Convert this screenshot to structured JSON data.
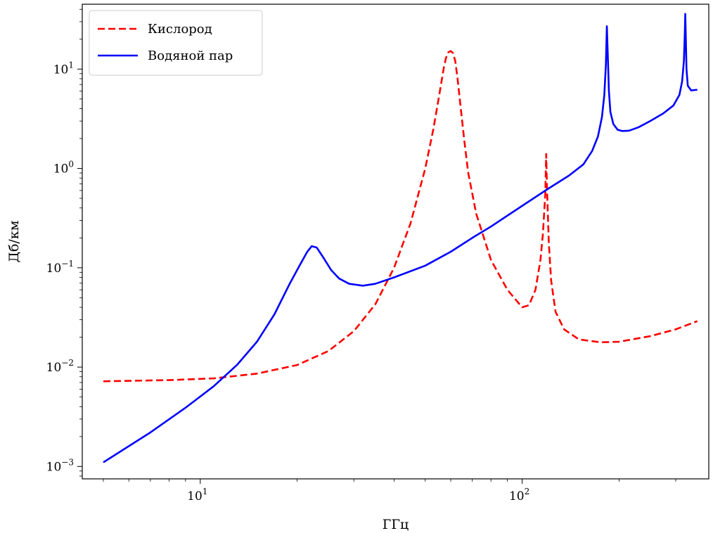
{
  "chart_data": {
    "type": "line",
    "xscale": "log",
    "yscale": "log",
    "xlim": [
      4.3,
      380
    ],
    "ylim": [
      0.00075,
      45
    ],
    "xlabel": "ГГц",
    "ylabel": "Дб/км",
    "x_ticks": [
      {
        "base": "10",
        "exp": "1",
        "value": 10
      },
      {
        "base": "10",
        "exp": "2",
        "value": 100
      }
    ],
    "y_ticks": [
      {
        "base": "10",
        "exp": "−3",
        "value": 0.001
      },
      {
        "base": "10",
        "exp": "−2",
        "value": 0.01
      },
      {
        "base": "10",
        "exp": "−1",
        "value": 0.1
      },
      {
        "base": "10",
        "exp": "0",
        "value": 1
      },
      {
        "base": "10",
        "exp": "1",
        "value": 10
      }
    ],
    "legend_position": "upper-left",
    "series": [
      {
        "name": "Кислород",
        "color": "#ff0000",
        "style": "dashed",
        "x": [
          5,
          8,
          11,
          15,
          20,
          25,
          30,
          35,
          40,
          45,
          50,
          53,
          55,
          57,
          58,
          59,
          60,
          61,
          62,
          63,
          64,
          66,
          68,
          72,
          80,
          90,
          100,
          105,
          110,
          114,
          116,
          118,
          118.75,
          119.5,
          121,
          123,
          127,
          135,
          150,
          175,
          200,
          250,
          300,
          350
        ],
        "y": [
          0.0072,
          0.0074,
          0.0077,
          0.0086,
          0.0105,
          0.0145,
          0.023,
          0.043,
          0.1,
          0.28,
          1.0,
          2.5,
          5.0,
          10.0,
          13.0,
          14.8,
          15.2,
          14.5,
          12.0,
          8.0,
          5.0,
          2.0,
          0.9,
          0.35,
          0.12,
          0.06,
          0.04,
          0.042,
          0.06,
          0.12,
          0.22,
          0.55,
          1.4,
          0.6,
          0.18,
          0.075,
          0.036,
          0.024,
          0.019,
          0.0178,
          0.018,
          0.0205,
          0.024,
          0.029
        ]
      },
      {
        "name": "Водяной пар",
        "color": "#0000ff",
        "style": "solid",
        "x": [
          5,
          7,
          9,
          11,
          13,
          15,
          17,
          19,
          20.5,
          21.5,
          22.2,
          23,
          24,
          25.5,
          27,
          29,
          32,
          35,
          40,
          50,
          60,
          70,
          80,
          100,
          120,
          140,
          155,
          165,
          172,
          177,
          180,
          182,
          183.3,
          184.5,
          186,
          188,
          192,
          198,
          205,
          215,
          230,
          250,
          275,
          295,
          308,
          314,
          318,
          320,
          321.2,
          322.5,
          324,
          327,
          335,
          350
        ],
        "y": [
          0.0011,
          0.0022,
          0.0039,
          0.0064,
          0.0105,
          0.018,
          0.034,
          0.07,
          0.11,
          0.145,
          0.165,
          0.16,
          0.13,
          0.095,
          0.078,
          0.069,
          0.066,
          0.069,
          0.08,
          0.105,
          0.145,
          0.2,
          0.26,
          0.42,
          0.62,
          0.85,
          1.1,
          1.5,
          2.1,
          3.3,
          5.5,
          11.0,
          27.0,
          14.0,
          6.0,
          3.7,
          2.8,
          2.45,
          2.38,
          2.4,
          2.6,
          3.0,
          3.6,
          4.3,
          5.5,
          7.5,
          12.0,
          22.0,
          36.0,
          20.0,
          10.0,
          6.8,
          6.1,
          6.2
        ]
      }
    ]
  }
}
